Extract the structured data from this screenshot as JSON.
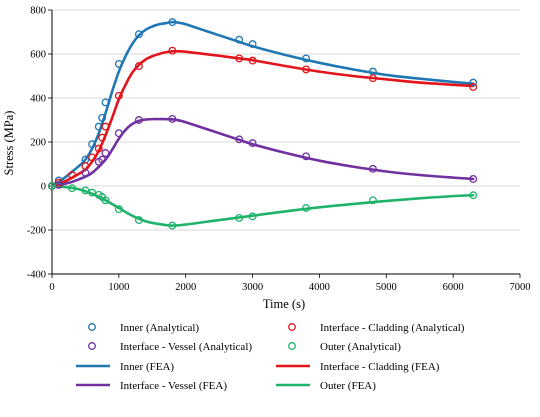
{
  "chart_data": {
    "type": "line",
    "xlabel": "Time (s)",
    "ylabel": "Stress (MPa)",
    "xlim": [
      0,
      7000
    ],
    "ylim": [
      -400,
      800
    ],
    "xticks": [
      0,
      1000,
      2000,
      3000,
      4000,
      5000,
      6000,
      7000
    ],
    "yticks": [
      -400,
      -200,
      0,
      200,
      400,
      600,
      800
    ],
    "grid": "horizontal",
    "legend_position": "bottom",
    "colors": {
      "inner": "#1f77b4",
      "cladding": "#e3141b",
      "vessel": "#7030a0",
      "outer": "#1fb36b"
    },
    "series": [
      {
        "name": "Inner (FEA)",
        "group": "inner",
        "style": "line",
        "x": [
          0,
          100,
          200,
          300,
          400,
          500,
          600,
          700,
          800,
          900,
          1000,
          1100,
          1200,
          1300,
          1400,
          1500,
          1600,
          1700,
          1800,
          1900,
          2000,
          2200,
          2500,
          2800,
          3000,
          3500,
          4000,
          4500,
          5000,
          5500,
          6000,
          6300
        ],
        "y": [
          0,
          18,
          40,
          65,
          90,
          120,
          170,
          240,
          330,
          430,
          520,
          590,
          645,
          685,
          710,
          725,
          735,
          740,
          745,
          742,
          735,
          715,
          685,
          655,
          635,
          595,
          560,
          530,
          505,
          488,
          473,
          465
        ]
      },
      {
        "name": "Interface - Cladding (FEA)",
        "group": "cladding",
        "style": "line",
        "x": [
          0,
          100,
          200,
          300,
          400,
          500,
          600,
          700,
          800,
          900,
          1000,
          1100,
          1200,
          1300,
          1400,
          1500,
          1600,
          1700,
          1800,
          1900,
          2000,
          2200,
          2500,
          2800,
          3000,
          3500,
          4000,
          4500,
          5000,
          5500,
          6000,
          6300
        ],
        "y": [
          0,
          10,
          22,
          38,
          55,
          75,
          110,
          160,
          230,
          310,
          395,
          460,
          515,
          550,
          575,
          590,
          600,
          608,
          612,
          612,
          610,
          603,
          592,
          580,
          572,
          545,
          520,
          500,
          485,
          470,
          460,
          455
        ]
      },
      {
        "name": "Interface - Vessel (FEA)",
        "group": "vessel",
        "style": "line",
        "x": [
          0,
          200,
          400,
          600,
          800,
          900,
          1000,
          1100,
          1200,
          1300,
          1400,
          1500,
          1600,
          1700,
          1800,
          1900,
          2000,
          2200,
          2500,
          2800,
          3000,
          3500,
          4000,
          4500,
          5000,
          5500,
          6000,
          6300
        ],
        "y": [
          0,
          10,
          30,
          60,
          120,
          165,
          215,
          255,
          282,
          296,
          302,
          304,
          304,
          304,
          303,
          298,
          290,
          270,
          240,
          210,
          190,
          150,
          115,
          88,
          66,
          50,
          38,
          32
        ]
      },
      {
        "name": "Outer (FEA)",
        "group": "outer",
        "style": "line",
        "x": [
          0,
          200,
          400,
          600,
          800,
          1000,
          1200,
          1400,
          1600,
          1800,
          2000,
          2500,
          3000,
          3500,
          4000,
          4500,
          5000,
          5500,
          6000,
          6300
        ],
        "y": [
          0,
          -5,
          -15,
          -35,
          -65,
          -100,
          -135,
          -160,
          -173,
          -180,
          -175,
          -155,
          -135,
          -115,
          -97,
          -82,
          -68,
          -56,
          -46,
          -42
        ]
      },
      {
        "name": "Inner (Analytical)",
        "group": "inner",
        "style": "marker",
        "x": [
          0,
          100,
          500,
          600,
          700,
          750,
          800,
          1000,
          1300,
          1800,
          2800,
          3000,
          3800,
          4800,
          6300
        ],
        "y": [
          0,
          25,
          120,
          190,
          270,
          310,
          380,
          555,
          690,
          745,
          665,
          645,
          580,
          520,
          470
        ]
      },
      {
        "name": "Interface - Cladding (Analytical)",
        "group": "cladding",
        "style": "marker",
        "x": [
          0,
          100,
          300,
          500,
          600,
          700,
          750,
          800,
          1000,
          1300,
          1800,
          2800,
          3000,
          3800,
          4800,
          6300
        ],
        "y": [
          0,
          15,
          50,
          90,
          130,
          170,
          220,
          270,
          410,
          545,
          615,
          580,
          570,
          530,
          490,
          450
        ]
      },
      {
        "name": "Interface - Vessel (Analytical)",
        "group": "vessel",
        "style": "marker",
        "x": [
          0,
          100,
          500,
          700,
          750,
          800,
          1000,
          1300,
          1800,
          2800,
          3000,
          3800,
          4800,
          6300
        ],
        "y": [
          0,
          5,
          60,
          110,
          120,
          150,
          240,
          300,
          305,
          212,
          195,
          135,
          78,
          32
        ]
      },
      {
        "name": "Outer (Analytical)",
        "group": "outer",
        "style": "marker",
        "x": [
          0,
          300,
          500,
          600,
          700,
          750,
          800,
          1000,
          1300,
          1800,
          2800,
          3000,
          3800,
          4800,
          6300
        ],
        "y": [
          0,
          -10,
          -20,
          -30,
          -40,
          -50,
          -65,
          -105,
          -155,
          -180,
          -145,
          -138,
          -100,
          -65,
          -42
        ]
      }
    ],
    "legend_entries": [
      {
        "label": "Inner (Analytical)",
        "group": "inner",
        "style": "marker"
      },
      {
        "label": "Interface - Cladding (Analytical)",
        "group": "cladding",
        "style": "marker"
      },
      {
        "label": "Interface - Vessel (Analytical)",
        "group": "vessel",
        "style": "marker"
      },
      {
        "label": "Outer (Analytical)",
        "group": "outer",
        "style": "marker"
      },
      {
        "label": "Inner (FEA)",
        "group": "inner",
        "style": "line"
      },
      {
        "label": "Interface - Cladding (FEA)",
        "group": "cladding",
        "style": "line"
      },
      {
        "label": "Interface - Vessel (FEA)",
        "group": "vessel",
        "style": "line"
      },
      {
        "label": "Outer (FEA)",
        "group": "outer",
        "style": "line"
      }
    ]
  }
}
